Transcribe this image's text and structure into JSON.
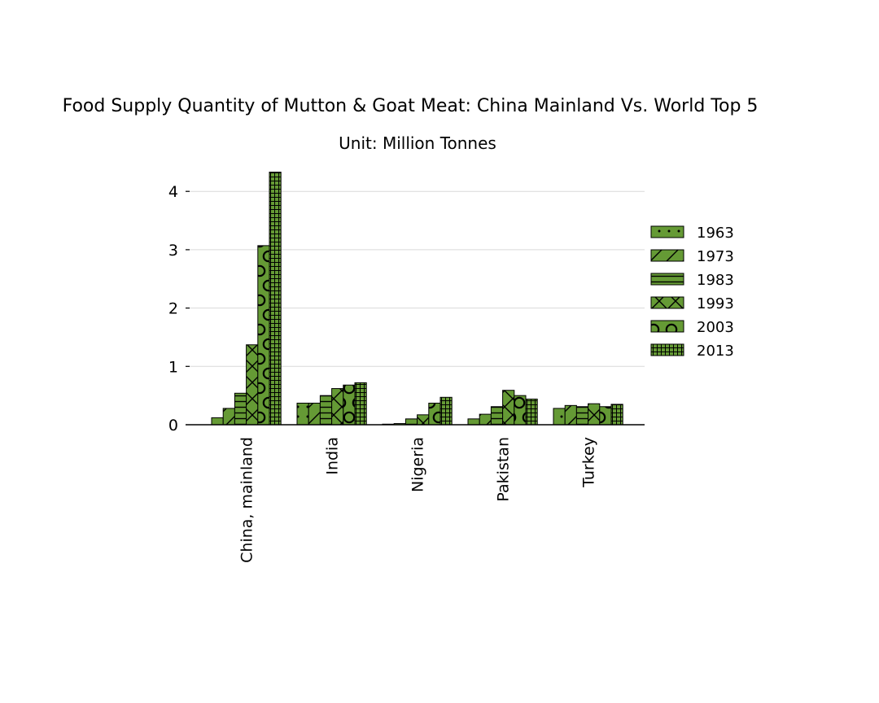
{
  "chart_data": {
    "type": "bar",
    "title": "Food Supply Quantity of Mutton & Goat Meat: China Mainland Vs. World Top 5",
    "subtitle": "Unit: Million Tonnes",
    "xlabel": "",
    "ylabel": "",
    "categories": [
      "China, mainland",
      "India",
      "Nigeria",
      "Pakistan",
      "Turkey"
    ],
    "series": [
      {
        "name": "1963",
        "pattern": "dots",
        "values": [
          0.12,
          0.37,
          0.01,
          0.1,
          0.28
        ]
      },
      {
        "name": "1973",
        "pattern": "diagonal",
        "values": [
          0.28,
          0.37,
          0.02,
          0.18,
          0.33
        ]
      },
      {
        "name": "1983",
        "pattern": "horizontal",
        "values": [
          0.54,
          0.5,
          0.1,
          0.31,
          0.31
        ]
      },
      {
        "name": "1993",
        "pattern": "cross",
        "values": [
          1.37,
          0.62,
          0.17,
          0.59,
          0.36
        ]
      },
      {
        "name": "2003",
        "pattern": "circles",
        "values": [
          3.07,
          0.68,
          0.37,
          0.5,
          0.31
        ]
      },
      {
        "name": "2013",
        "pattern": "grid",
        "values": [
          4.33,
          0.72,
          0.47,
          0.44,
          0.35
        ]
      }
    ],
    "ylim": [
      0,
      4.35
    ],
    "yticks": [
      0,
      1,
      2,
      3,
      4
    ],
    "grid": true,
    "legend_position": "right",
    "bar_color": "#659a35",
    "edge_color": "#000000",
    "grid_color": "#d9d9d9"
  }
}
